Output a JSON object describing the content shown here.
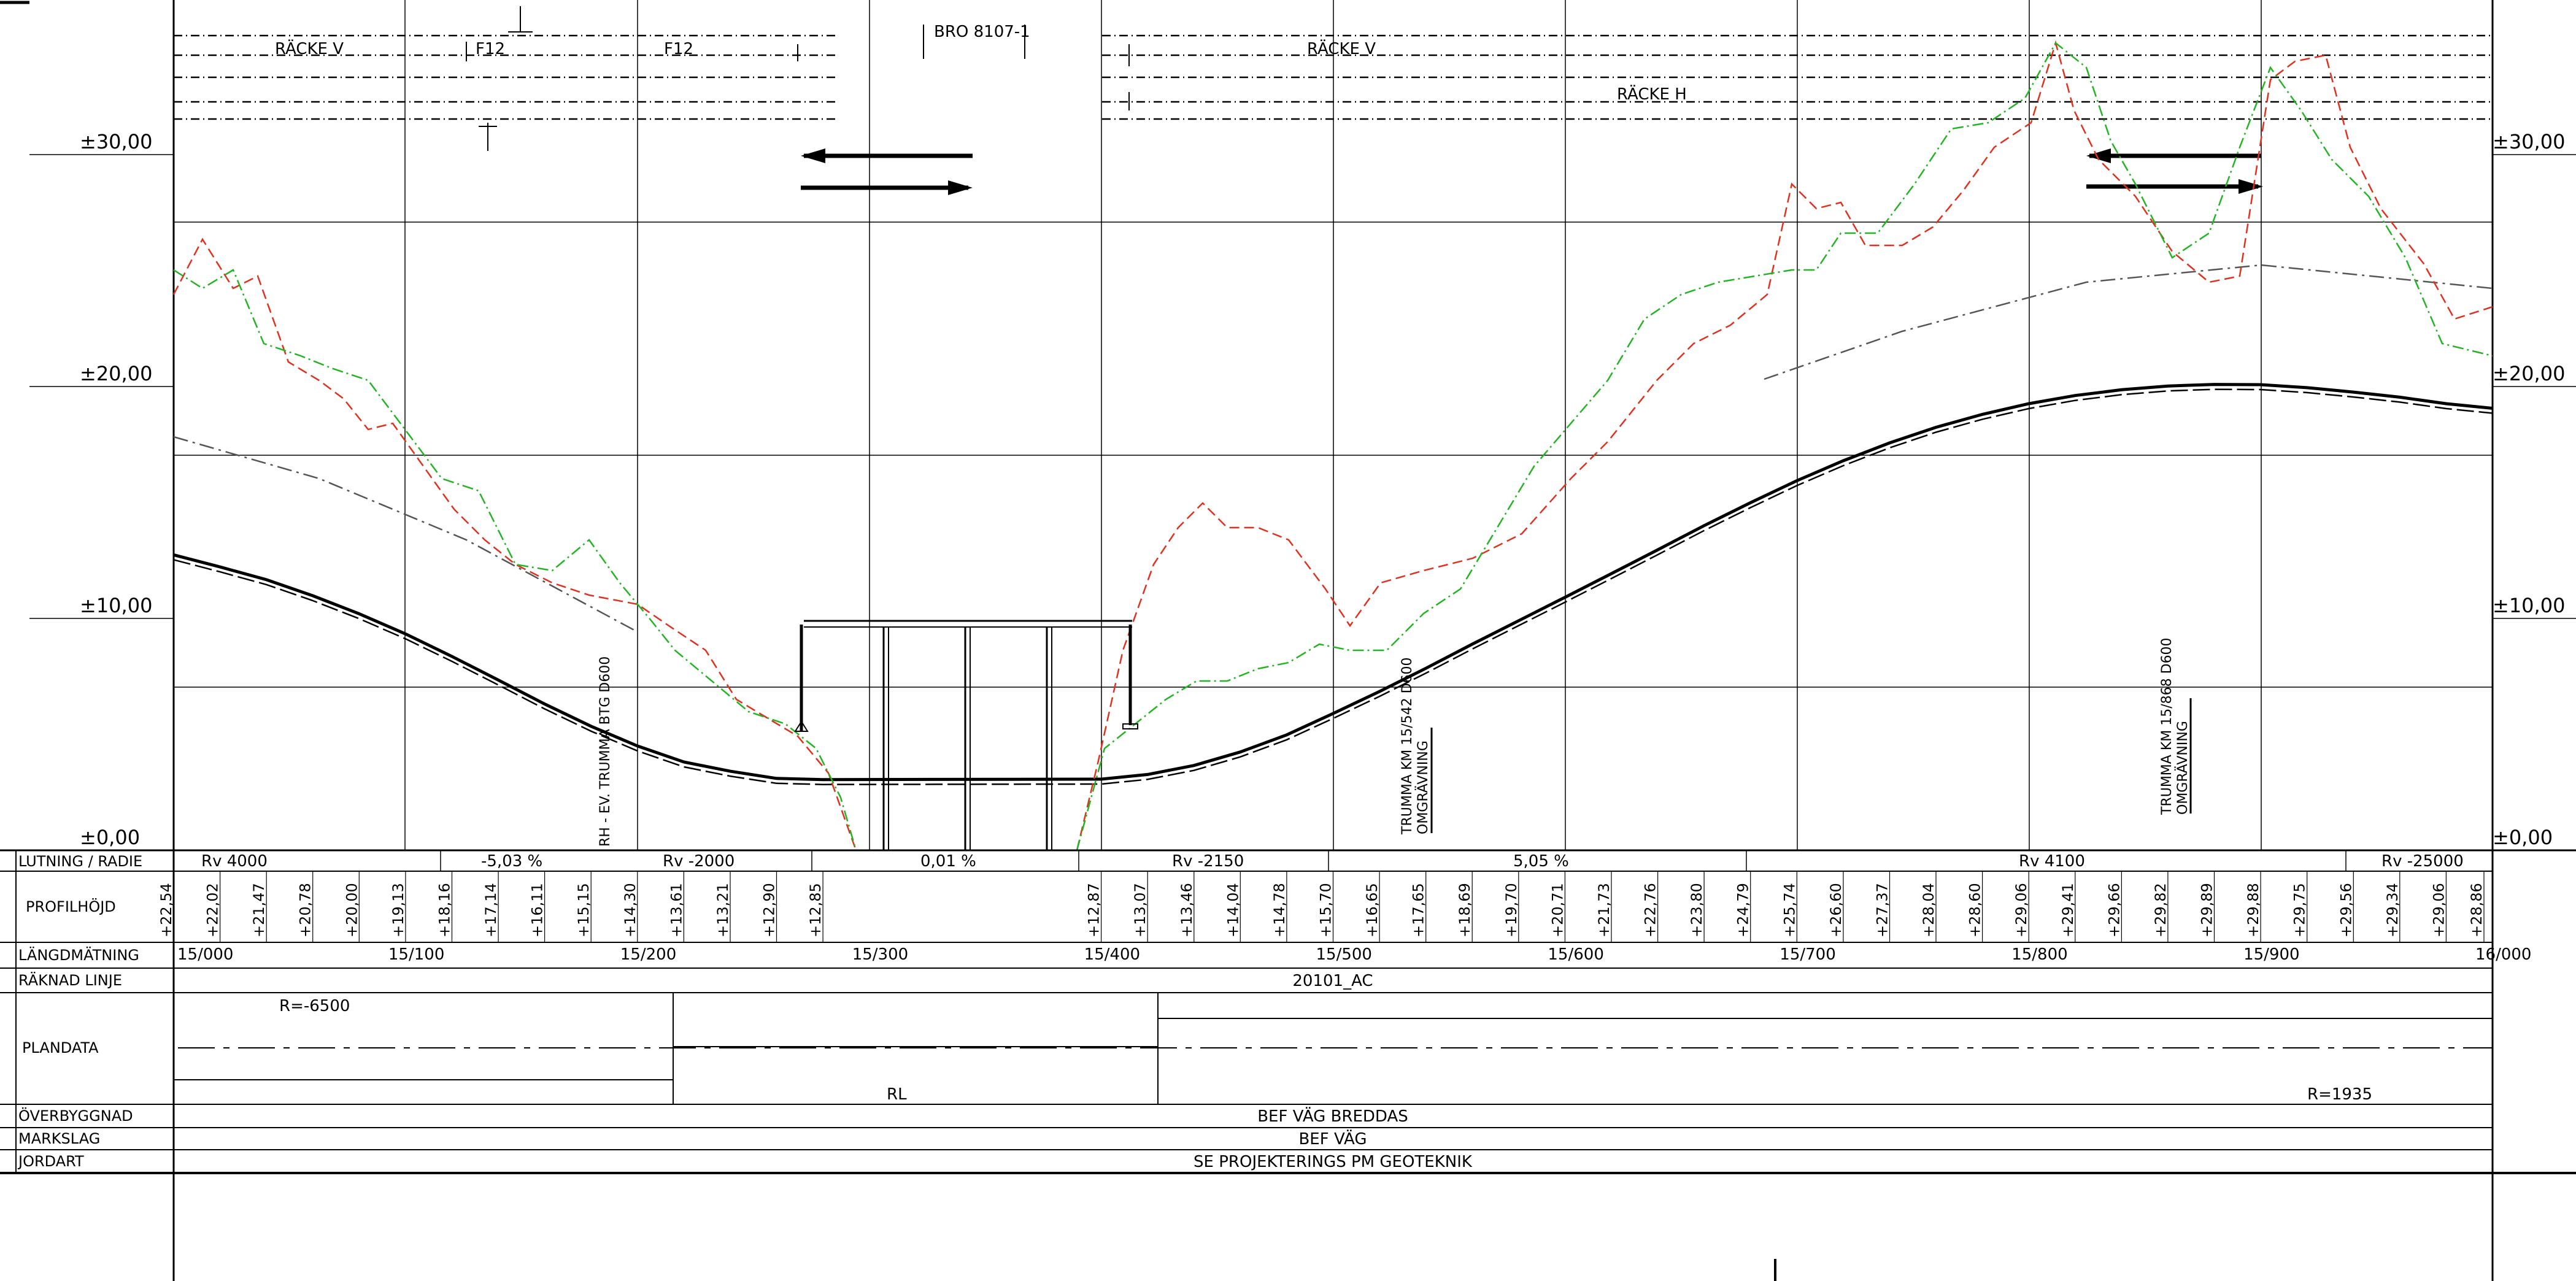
{
  "elevation_labels": [
    "±30,00",
    "±20,00",
    "±10,00",
    "±0,00"
  ],
  "top_annotations": {
    "racke_v_left": "RÄCKE V",
    "f12_a": "F12",
    "f12_b": "F12",
    "bridge": "BRO 8107-1",
    "racke_v_right": "RÄCKE V",
    "racke_h": "RÄCKE H"
  },
  "culverts": [
    {
      "label": "RH - EV. TRUMMA BTG D600"
    },
    {
      "label": "TRUMMA KM 15/542 D600",
      "sub": "OMGRÄVNING"
    },
    {
      "label": "TRUMMA KM 15/868 D600",
      "sub": "OMGRÄVNING"
    }
  ],
  "row_labels": {
    "lutning": "LUTNING / RADIE",
    "profilhojd": "PROFILHÖJD",
    "langdmatning": "LÄNGDMÄTNING",
    "raknad_linje": "RÄKNAD LINJE",
    "plandata": "PLANDATA",
    "overbyggnad": "ÖVERBYGGNAD",
    "markslag": "MARKSLAG",
    "jordart": "JORDART"
  },
  "lutning_values": [
    "Rv 4000",
    "-5,03 %",
    "Rv -2000",
    "0,01 %",
    "Rv -2150",
    "5,05 %",
    "Rv 4100",
    "Rv -25000"
  ],
  "profilhojd_values": [
    "+22,54",
    "+22,02",
    "+21,47",
    "+20,78",
    "+20,00",
    "+19,13",
    "+18,16",
    "+17,14",
    "+16,11",
    "+15,15",
    "+14,30",
    "+13,61",
    "+13,21",
    "+12,90",
    "+12,85",
    "+12,87",
    "+13,07",
    "+13,46",
    "+14,04",
    "+14,78",
    "+15,70",
    "+16,65",
    "+17,65",
    "+18,69",
    "+19,70",
    "+20,71",
    "+21,73",
    "+22,76",
    "+23,80",
    "+24,79",
    "+25,74",
    "+26,60",
    "+27,37",
    "+28,04",
    "+28,60",
    "+29,06",
    "+29,41",
    "+29,66",
    "+29,82",
    "+29,89",
    "+29,88",
    "+29,75",
    "+29,56",
    "+29,34",
    "+29,06",
    "+28,86"
  ],
  "langdmatning_values": [
    "15/000",
    "15/100",
    "15/200",
    "15/300",
    "15/400",
    "15/500",
    "15/600",
    "15/700",
    "15/800",
    "15/900",
    "16/000"
  ],
  "raknad_linje_value": "20101_AC",
  "plandata_values": {
    "r1": "R=-6500",
    "rl": "RL",
    "r2": "R=1935"
  },
  "overbyggnad_value": "BEF VÄG BREDDAS",
  "markslag_value": "BEF VÄG",
  "jordart_value": "SE PROJEKTERINGS PM GEOTEKNIK",
  "colors": {
    "existing_left": "#e0301e",
    "existing_right": "#22b422",
    "line": "#000000"
  }
}
